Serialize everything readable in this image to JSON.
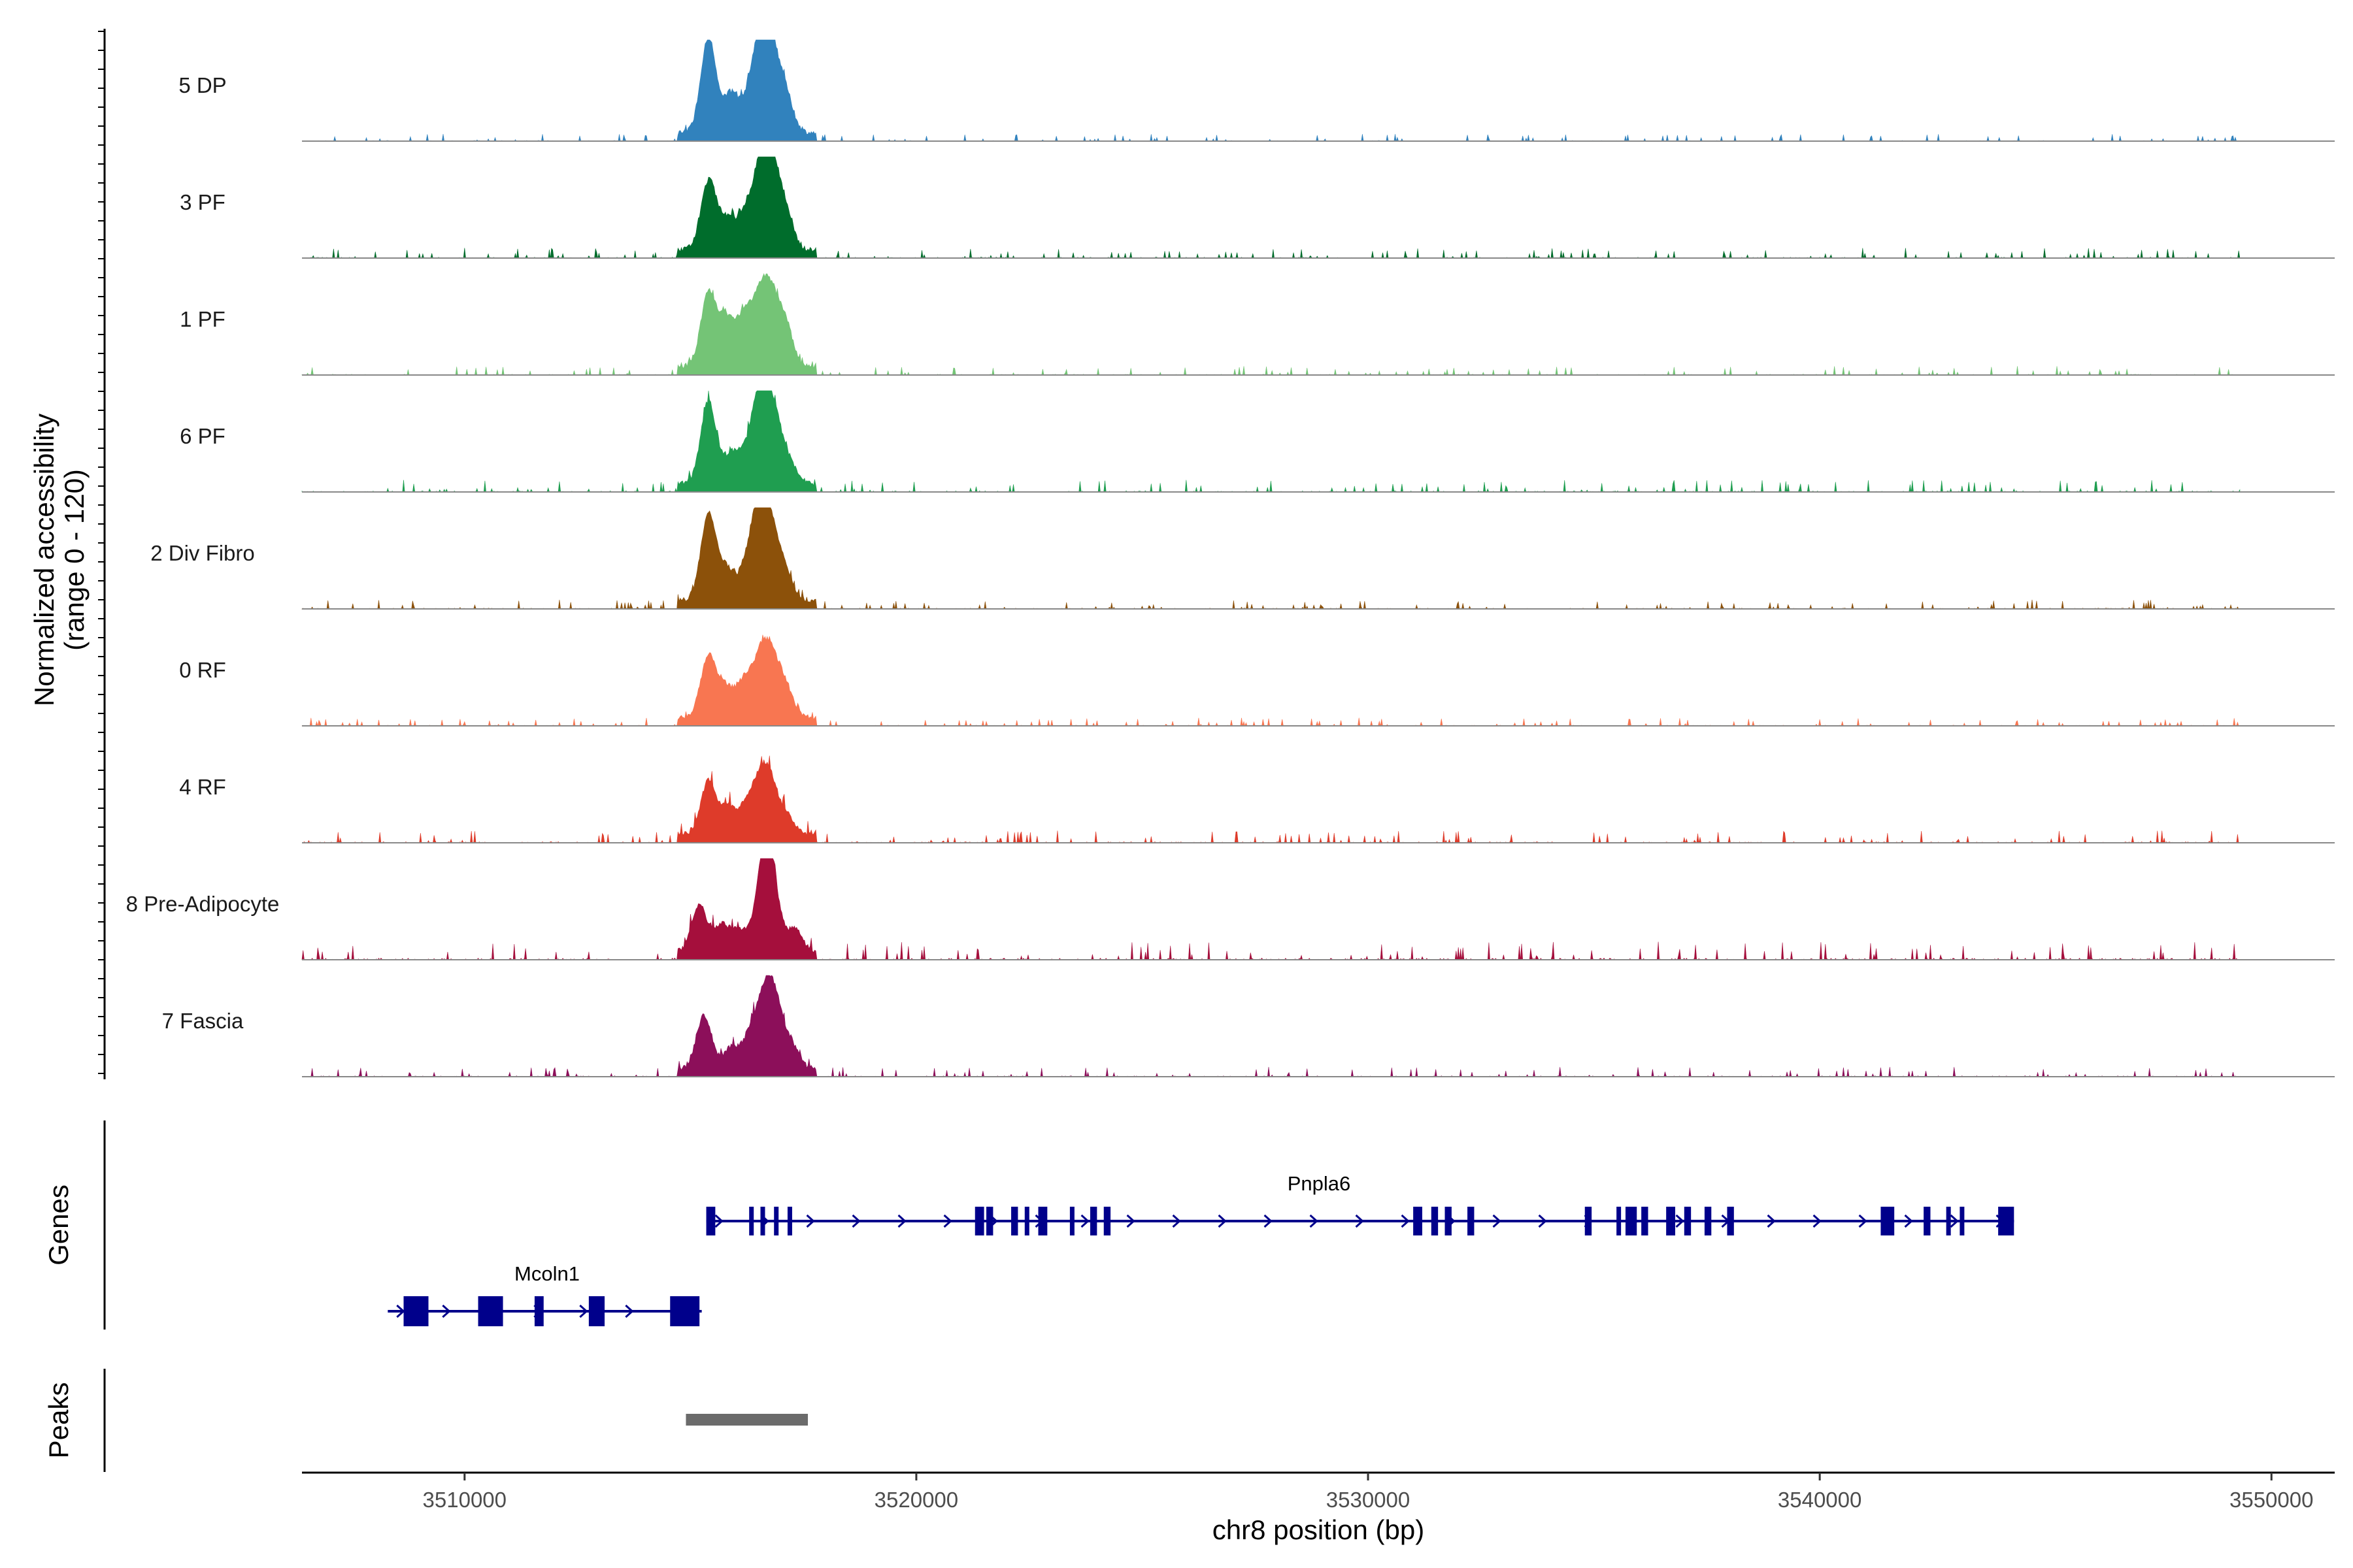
{
  "chart_data": {
    "type": "coverage_track",
    "title": "",
    "chromosome": "chr8",
    "xlabel": "chr8 position (bp)",
    "ylabel_line1": "Normalized accessibility",
    "ylabel_line2": "(range 0 - 120)",
    "y_range": [
      0,
      120
    ],
    "xlim": [
      3506400,
      3551400
    ],
    "x_ticks": [
      3510000,
      3520000,
      3530000,
      3540000,
      3550000
    ],
    "x_tick_labels": [
      "3510000",
      "3520000",
      "3530000",
      "3540000",
      "3550000"
    ],
    "track_start": 3506400,
    "track_end": 3549300,
    "region_label_genes": "Genes",
    "region_label_peaks": "Peaks",
    "tracks": [
      {
        "label": "5 DP",
        "color": "#3182bd",
        "peaks": [
          [
            3515400,
            0.94
          ],
          [
            3515900,
            0.38
          ],
          [
            3516300,
            0.28
          ],
          [
            3516550,
            0.79
          ],
          [
            3516800,
            0.68
          ],
          [
            3517100,
            0.37
          ]
        ],
        "noise_level": 0.035
      },
      {
        "label": "3 PF",
        "color": "#006d2c",
        "peaks": [
          [
            3515400,
            0.68
          ],
          [
            3515800,
            0.28
          ],
          [
            3516200,
            0.35
          ],
          [
            3516550,
            0.74
          ],
          [
            3516800,
            0.74
          ],
          [
            3517100,
            0.36
          ]
        ],
        "noise_level": 0.05
      },
      {
        "label": "1 PF",
        "color": "#74c476",
        "peaks": [
          [
            3515400,
            0.72
          ],
          [
            3515800,
            0.45
          ],
          [
            3516200,
            0.49
          ],
          [
            3516550,
            0.6
          ],
          [
            3516800,
            0.55
          ],
          [
            3517100,
            0.4
          ]
        ],
        "noise_level": 0.045
      },
      {
        "label": "6 PF",
        "color": "#1f9e50",
        "peaks": [
          [
            3515400,
            0.81
          ],
          [
            3515900,
            0.28
          ],
          [
            3516250,
            0.26
          ],
          [
            3516550,
            0.88
          ],
          [
            3516850,
            0.64
          ],
          [
            3517200,
            0.2
          ]
        ],
        "noise_level": 0.06
      },
      {
        "label": "2 Div Fibro",
        "color": "#8c510a",
        "peaks": [
          [
            3515400,
            0.85
          ],
          [
            3515800,
            0.3
          ],
          [
            3516250,
            0.34
          ],
          [
            3516550,
            0.95
          ],
          [
            3516800,
            0.52
          ],
          [
            3517100,
            0.28
          ]
        ],
        "noise_level": 0.045
      },
      {
        "label": "0 RF",
        "color": "#f87651",
        "peaks": [
          [
            3515400,
            0.62
          ],
          [
            3515800,
            0.28
          ],
          [
            3516200,
            0.35
          ],
          [
            3516550,
            0.52
          ],
          [
            3516800,
            0.48
          ],
          [
            3517100,
            0.3
          ]
        ],
        "noise_level": 0.04
      },
      {
        "label": "4 RF",
        "color": "#de3b2a",
        "peaks": [
          [
            3515400,
            0.53
          ],
          [
            3515850,
            0.27
          ],
          [
            3516250,
            0.25
          ],
          [
            3516550,
            0.48
          ],
          [
            3516800,
            0.42
          ],
          [
            3517150,
            0.17
          ]
        ],
        "noise_level": 0.06
      },
      {
        "label": "8 Pre-Adipocyte",
        "color": "#a50f3c",
        "peaks": [
          [
            3515200,
            0.45
          ],
          [
            3515700,
            0.26
          ],
          [
            3516100,
            0.2
          ],
          [
            3516600,
            0.72
          ],
          [
            3516800,
            0.65
          ],
          [
            3517300,
            0.22
          ]
        ],
        "noise_level": 0.09
      },
      {
        "label": "7 Fascia",
        "color": "#8c0f5a",
        "peaks": [
          [
            3515300,
            0.52
          ],
          [
            3515900,
            0.2
          ],
          [
            3516300,
            0.28
          ],
          [
            3516600,
            0.56
          ],
          [
            3516850,
            0.63
          ],
          [
            3517200,
            0.26
          ]
        ],
        "noise_level": 0.05
      }
    ],
    "genes": [
      {
        "name": "Pnpla6",
        "start": 3515350,
        "end": 3544300,
        "strand": "+",
        "exons": [
          [
            3515350,
            3515550
          ],
          [
            3516300,
            3516350
          ],
          [
            3516550,
            3516600
          ],
          [
            3516850,
            3516950
          ],
          [
            3517150,
            3517250
          ],
          [
            3521300,
            3521500
          ],
          [
            3521550,
            3521700
          ],
          [
            3522100,
            3522250
          ],
          [
            3522400,
            3522500
          ],
          [
            3522700,
            3522900
          ],
          [
            3523400,
            3523500
          ],
          [
            3523850,
            3524000
          ],
          [
            3524150,
            3524300
          ],
          [
            3531000,
            3531200
          ],
          [
            3531400,
            3531550
          ],
          [
            3531700,
            3531850
          ],
          [
            3532200,
            3532350
          ],
          [
            3534800,
            3534950
          ],
          [
            3535500,
            3535600
          ],
          [
            3535700,
            3535950
          ],
          [
            3536050,
            3536200
          ],
          [
            3536600,
            3536800
          ],
          [
            3537000,
            3537150
          ],
          [
            3537450,
            3537600
          ],
          [
            3537950,
            3538100
          ],
          [
            3541350,
            3541650
          ],
          [
            3542300,
            3542450
          ],
          [
            3542800,
            3542900
          ],
          [
            3543100,
            3543200
          ],
          [
            3543950,
            3544300
          ]
        ],
        "row": 0
      },
      {
        "name": "Mcoln1",
        "start": 3508300,
        "end": 3515250,
        "strand": "+",
        "exons": [
          [
            3508650,
            3509200
          ],
          [
            3510300,
            3510850
          ],
          [
            3511550,
            3511750
          ],
          [
            3512750,
            3513100
          ],
          [
            3514550,
            3515200
          ]
        ],
        "row": 1
      }
    ],
    "peak_regions": [
      [
        3514900,
        3517600
      ]
    ],
    "colors": {
      "gene": "#00008b",
      "peak_region": "#6b6b6b",
      "axis": "#000000",
      "baseline": "#888888"
    }
  }
}
